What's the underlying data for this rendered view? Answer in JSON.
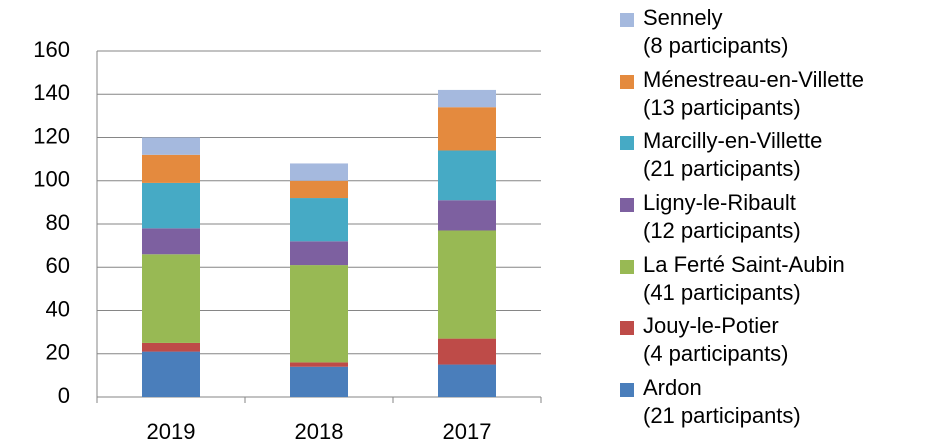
{
  "chart_data": {
    "type": "stacked_bar",
    "categories": [
      "2019",
      "2018",
      "2017"
    ],
    "series": [
      {
        "name": "Ardon\n(21 participants)",
        "color": "#4a7ebb",
        "values": [
          21,
          14,
          15
        ]
      },
      {
        "name": "Jouy-le-Potier\n(4 participants)",
        "color": "#be4b48",
        "values": [
          4,
          2,
          12
        ]
      },
      {
        "name": "La Ferté Saint-Aubin\n(41 participants)",
        "color": "#98b954",
        "values": [
          41,
          45,
          50
        ]
      },
      {
        "name": "Ligny-le-Ribault\n(12 participants)",
        "color": "#7d60a0",
        "values": [
          12,
          11,
          14
        ]
      },
      {
        "name": "Marcilly-en-Villette\n(21 participants)",
        "color": "#46aac5",
        "values": [
          21,
          20,
          23
        ]
      },
      {
        "name": "Ménestreau-en-Villette\n(13 participants)",
        "color": "#e48a3e",
        "values": [
          13,
          8,
          20
        ]
      },
      {
        "name": "Sennely\n(8 participants)",
        "color": "#a5b9de",
        "values": [
          8,
          8,
          8
        ]
      }
    ],
    "ylim": [
      0,
      160
    ],
    "yticks": [
      0,
      20,
      40,
      60,
      80,
      100,
      120,
      140,
      160
    ],
    "grid": true,
    "legend": "right"
  }
}
